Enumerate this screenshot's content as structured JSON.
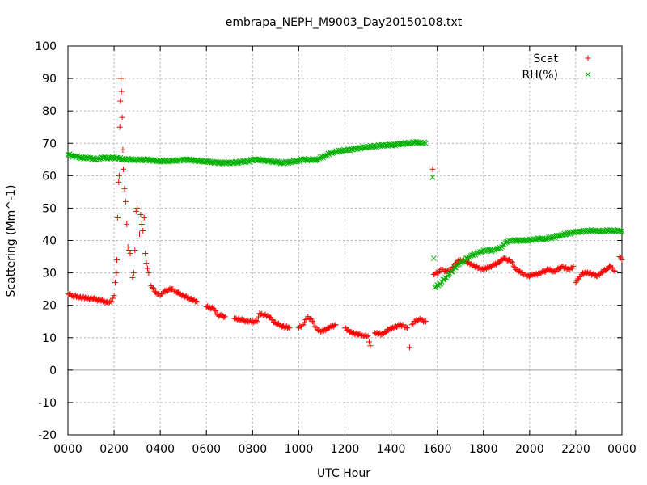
{
  "chart_data": {
    "type": "scatter",
    "title": "embrapa_NEPH_M9003_Day20150108.txt",
    "xlabel": "UTC Hour",
    "ylabel": "Scattering (Mm^-1)",
    "xlim": [
      0,
      24
    ],
    "ylim": [
      -20,
      100
    ],
    "x_ticks": [
      0,
      2,
      4,
      6,
      8,
      10,
      12,
      14,
      16,
      18,
      20,
      22,
      24
    ],
    "x_tick_labels": [
      "0000",
      "0200",
      "0400",
      "0600",
      "0800",
      "1000",
      "1200",
      "1400",
      "1600",
      "1800",
      "2000",
      "2200",
      "0000"
    ],
    "y_ticks": [
      -20,
      -10,
      0,
      10,
      20,
      30,
      40,
      50,
      60,
      70,
      80,
      90,
      100
    ],
    "y_tick_labels": [
      "-20",
      "-10",
      "0",
      "10",
      "20",
      "30",
      "40",
      "50",
      "60",
      "70",
      "80",
      "90",
      "100"
    ],
    "grid": true,
    "legend_position": "top-right",
    "series": [
      {
        "name": "Scat",
        "marker": "+",
        "color": "#ff0000",
        "points": [
          [
            0.0,
            23.5
          ],
          [
            0.2,
            23.0
          ],
          [
            0.5,
            22.5
          ],
          [
            0.8,
            22.2
          ],
          [
            1.1,
            22.0
          ],
          [
            1.4,
            21.5
          ],
          [
            1.7,
            21.0
          ],
          [
            1.9,
            21.0
          ],
          [
            2.0,
            23.0
          ],
          [
            2.05,
            27.0
          ],
          [
            2.1,
            30.0
          ],
          [
            2.12,
            34.0
          ],
          [
            2.15,
            47.0
          ],
          [
            2.2,
            58.0
          ],
          [
            2.22,
            60.0
          ],
          [
            2.25,
            75.0
          ],
          [
            2.27,
            83.0
          ],
          [
            2.3,
            90.0
          ],
          [
            2.32,
            86.0
          ],
          [
            2.35,
            78.0
          ],
          [
            2.38,
            68.0
          ],
          [
            2.4,
            62.0
          ],
          [
            2.45,
            56.0
          ],
          [
            2.5,
            52.0
          ],
          [
            2.55,
            45.0
          ],
          [
            2.6,
            38.0
          ],
          [
            2.7,
            36.0
          ],
          [
            2.8,
            28.5
          ],
          [
            2.85,
            30.0
          ],
          [
            2.9,
            37.0
          ],
          [
            2.95,
            49.0
          ],
          [
            3.0,
            50.0
          ],
          [
            3.1,
            42.0
          ],
          [
            3.15,
            48.0
          ],
          [
            3.2,
            45.0
          ],
          [
            3.25,
            43.0
          ],
          [
            3.3,
            47.0
          ],
          [
            3.35,
            36.0
          ],
          [
            3.4,
            33.0
          ],
          [
            3.5,
            30.0
          ],
          [
            3.6,
            26.0
          ],
          [
            3.8,
            24.0
          ],
          [
            4.0,
            23.0
          ],
          [
            4.2,
            24.5
          ],
          [
            4.5,
            25.0
          ],
          [
            4.7,
            24.0
          ],
          [
            5.0,
            23.0
          ],
          [
            5.3,
            22.0
          ],
          [
            5.6,
            21.0
          ],
          [
            6.0,
            19.5
          ],
          [
            6.3,
            19.0
          ],
          [
            6.5,
            17.0
          ],
          [
            6.8,
            16.5
          ],
          [
            7.2,
            16.0
          ],
          [
            7.5,
            15.5
          ],
          [
            7.8,
            15.0
          ],
          [
            8.0,
            15.0
          ],
          [
            8.2,
            15.0
          ],
          [
            8.3,
            17.5
          ],
          [
            8.5,
            17.0
          ],
          [
            8.7,
            16.5
          ],
          [
            9.0,
            14.5
          ],
          [
            9.3,
            13.5
          ],
          [
            9.6,
            13.0
          ],
          [
            10.0,
            13.0
          ],
          [
            10.2,
            14.0
          ],
          [
            10.4,
            16.5
          ],
          [
            10.6,
            15.0
          ],
          [
            10.8,
            12.5
          ],
          [
            11.0,
            12.0
          ],
          [
            11.3,
            13.0
          ],
          [
            11.6,
            14.0
          ],
          [
            12.0,
            13.0
          ],
          [
            12.3,
            11.5
          ],
          [
            12.6,
            11.0
          ],
          [
            12.8,
            10.5
          ],
          [
            13.0,
            10.5
          ],
          [
            13.1,
            7.5
          ],
          [
            13.3,
            11.5
          ],
          [
            13.6,
            11.0
          ],
          [
            13.9,
            12.5
          ],
          [
            14.2,
            13.5
          ],
          [
            14.5,
            14.0
          ],
          [
            14.7,
            13.0
          ],
          [
            14.8,
            7.0
          ],
          [
            14.9,
            14.0
          ],
          [
            15.1,
            15.5
          ],
          [
            15.3,
            15.5
          ],
          [
            15.5,
            15.0
          ],
          [
            15.8,
            62.0
          ],
          [
            15.85,
            29.5
          ],
          [
            16.0,
            30.0
          ],
          [
            16.2,
            31.0
          ],
          [
            16.4,
            30.5
          ],
          [
            16.6,
            31.0
          ],
          [
            16.8,
            33.0
          ],
          [
            17.0,
            34.0
          ],
          [
            17.2,
            33.5
          ],
          [
            17.5,
            32.5
          ],
          [
            17.8,
            31.5
          ],
          [
            18.0,
            31.0
          ],
          [
            18.3,
            32.0
          ],
          [
            18.6,
            33.0
          ],
          [
            18.9,
            34.5
          ],
          [
            19.2,
            33.5
          ],
          [
            19.4,
            31.0
          ],
          [
            19.7,
            30.0
          ],
          [
            19.9,
            29.0
          ],
          [
            20.2,
            29.5
          ],
          [
            20.5,
            30.0
          ],
          [
            20.8,
            31.0
          ],
          [
            21.1,
            30.5
          ],
          [
            21.4,
            32.0
          ],
          [
            21.7,
            31.0
          ],
          [
            21.9,
            32.0
          ],
          [
            22.0,
            27.0
          ],
          [
            22.3,
            30.0
          ],
          [
            22.6,
            30.0
          ],
          [
            22.9,
            29.0
          ],
          [
            23.2,
            30.5
          ],
          [
            23.5,
            32.0
          ],
          [
            23.7,
            30.5
          ],
          [
            23.9,
            35.0
          ],
          [
            24.0,
            34.0
          ]
        ]
      },
      {
        "name": "RH(%)",
        "marker": "x",
        "color": "#00b000",
        "points": [
          [
            0.0,
            66.5
          ],
          [
            0.3,
            66.0
          ],
          [
            0.6,
            65.5
          ],
          [
            0.9,
            65.5
          ],
          [
            1.2,
            65.0
          ],
          [
            1.5,
            65.5
          ],
          [
            1.8,
            65.5
          ],
          [
            2.1,
            65.5
          ],
          [
            2.4,
            65.0
          ],
          [
            2.7,
            65.0
          ],
          [
            3.0,
            64.8
          ],
          [
            3.3,
            65.0
          ],
          [
            3.6,
            64.8
          ],
          [
            3.9,
            64.5
          ],
          [
            4.2,
            64.5
          ],
          [
            4.5,
            64.5
          ],
          [
            4.8,
            64.8
          ],
          [
            5.1,
            65.0
          ],
          [
            5.4,
            64.8
          ],
          [
            5.7,
            64.5
          ],
          [
            6.0,
            64.3
          ],
          [
            6.3,
            64.2
          ],
          [
            6.6,
            64.0
          ],
          [
            6.9,
            64.0
          ],
          [
            7.2,
            64.0
          ],
          [
            7.5,
            64.2
          ],
          [
            7.8,
            64.5
          ],
          [
            8.1,
            65.0
          ],
          [
            8.4,
            64.8
          ],
          [
            8.7,
            64.5
          ],
          [
            9.0,
            64.2
          ],
          [
            9.3,
            64.0
          ],
          [
            9.6,
            64.2
          ],
          [
            9.9,
            64.5
          ],
          [
            10.2,
            65.0
          ],
          [
            10.5,
            64.8
          ],
          [
            10.8,
            65.0
          ],
          [
            11.1,
            66.0
          ],
          [
            11.4,
            67.0
          ],
          [
            11.7,
            67.5
          ],
          [
            12.0,
            67.8
          ],
          [
            12.3,
            68.2
          ],
          [
            12.6,
            68.5
          ],
          [
            12.9,
            68.8
          ],
          [
            13.2,
            69.0
          ],
          [
            13.5,
            69.2
          ],
          [
            13.8,
            69.5
          ],
          [
            14.1,
            69.5
          ],
          [
            14.4,
            69.8
          ],
          [
            14.7,
            70.0
          ],
          [
            15.0,
            70.2
          ],
          [
            15.3,
            70.2
          ],
          [
            15.5,
            70.0
          ],
          [
            15.8,
            59.5
          ],
          [
            15.85,
            34.5
          ],
          [
            15.9,
            25.5
          ],
          [
            16.1,
            26.5
          ],
          [
            16.3,
            28.0
          ],
          [
            16.5,
            29.5
          ],
          [
            16.7,
            31.0
          ],
          [
            16.9,
            32.5
          ],
          [
            17.1,
            33.5
          ],
          [
            17.3,
            34.5
          ],
          [
            17.5,
            35.5
          ],
          [
            17.7,
            36.0
          ],
          [
            17.9,
            36.5
          ],
          [
            18.1,
            37.0
          ],
          [
            18.4,
            37.0
          ],
          [
            18.6,
            37.5
          ],
          [
            18.8,
            38.0
          ],
          [
            19.0,
            39.5
          ],
          [
            19.2,
            40.0
          ],
          [
            19.5,
            40.0
          ],
          [
            19.8,
            40.0
          ],
          [
            20.1,
            40.2
          ],
          [
            20.4,
            40.5
          ],
          [
            20.7,
            40.5
          ],
          [
            21.0,
            41.0
          ],
          [
            21.3,
            41.5
          ],
          [
            21.6,
            42.0
          ],
          [
            21.9,
            42.5
          ],
          [
            22.2,
            42.8
          ],
          [
            22.5,
            43.0
          ],
          [
            22.8,
            43.0
          ],
          [
            23.1,
            42.8
          ],
          [
            23.4,
            43.0
          ],
          [
            23.7,
            43.0
          ],
          [
            24.0,
            43.0
          ]
        ]
      }
    ]
  },
  "colors": {
    "scat": "#ff0000",
    "rh": "#00b000",
    "grid": "#b0b0b0",
    "zero_line": "#a0a0a0"
  }
}
